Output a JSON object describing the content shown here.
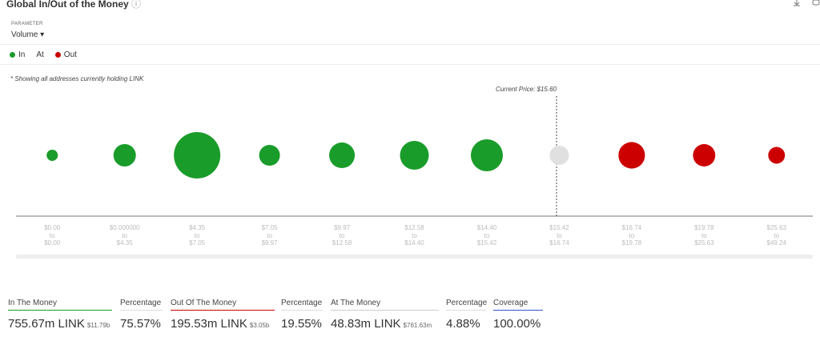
{
  "header": {
    "title": "Global In/Out of the Money",
    "parameter_label": "PARAMETER",
    "parameter_value": "Volume"
  },
  "chart_data": {
    "type": "bubble",
    "note": "* Showing all addresses currently holding LINK",
    "annotation": "Current Price: $15.60",
    "categories": [
      "$0.00\nto\n$0.00",
      "$0.000000\nto\n$4.35",
      "$4.35\nto\n$7.05",
      "$7.05\nto\n$9.97",
      "$9.97\nto\n$12.58",
      "$12.58\nto\n$14.40",
      "$14.40\nto\n$15.42",
      "$15.42\nto\n$16.74",
      "$16.74\nto\n$19.78",
      "$19.78\nto\n$25.63",
      "$25.63\nto\n$49.24"
    ],
    "series": [
      {
        "name": "In",
        "color": "#1a9c2a",
        "values": [
          16.6,
          66.3,
          284.3,
          57.1,
          86.6,
          109.6,
          135.2,
          null,
          null,
          null,
          null
        ]
      },
      {
        "name": "At",
        "color": "#e0e0e0",
        "values": [
          null,
          null,
          null,
          null,
          null,
          null,
          null,
          48.83,
          null,
          null,
          null
        ]
      },
      {
        "name": "Out",
        "color": "#cc0000",
        "values": [
          null,
          null,
          null,
          null,
          null,
          null,
          null,
          null,
          92.8,
          65.8,
          37.0
        ]
      }
    ]
  },
  "summary": [
    {
      "label": "In The Money",
      "value": "755.67m LINK",
      "sub": "$11.79b"
    },
    {
      "label": "Percentage",
      "value": "75.57%"
    },
    {
      "label": "Out Of The Money",
      "value": "195.53m LINK",
      "sub": "$3.05b"
    },
    {
      "label": "Percentage",
      "value": "19.55%"
    },
    {
      "label": "At The Money",
      "value": "48.83m LINK",
      "sub": "$761.63m"
    },
    {
      "label": "Percentage",
      "value": "4.88%"
    },
    {
      "label": "Coverage",
      "value": "100.00%"
    }
  ]
}
